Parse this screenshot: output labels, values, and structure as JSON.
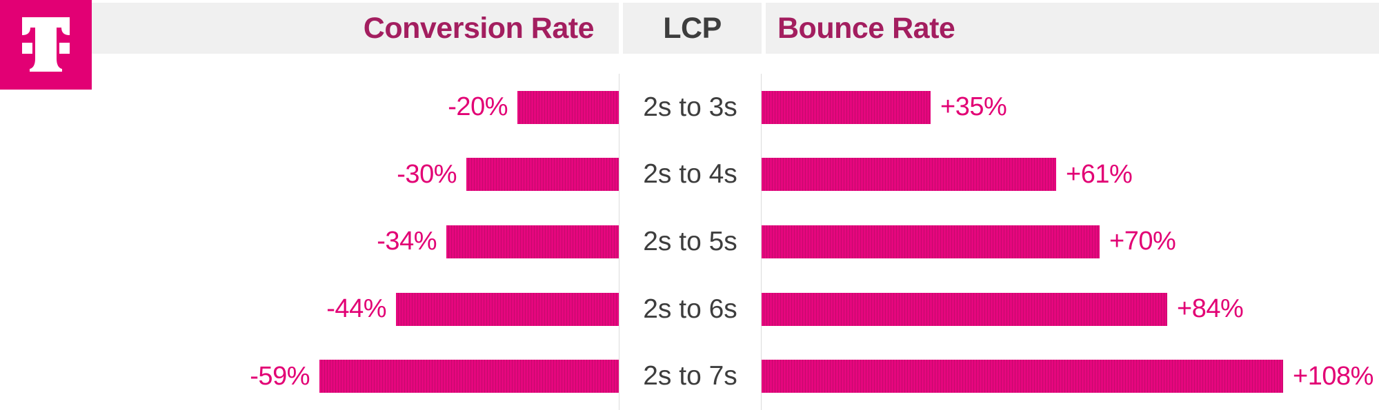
{
  "brand": {
    "logo": "t-mobile-telekom-logo"
  },
  "header": {
    "conversion_label": "Conversion Rate",
    "lcp_label": "LCP",
    "bounce_label": "Bounce Rate"
  },
  "colors": {
    "magenta": "#e20074",
    "bar_stripe_light": "#e6067e",
    "bar_stripe_dark": "#c40a6c",
    "header_text": "#a31e5f",
    "header_bg": "#f0f0f0",
    "dark_text": "#3d3d3d",
    "column_border": "#dcdcdc"
  },
  "chart_data": {
    "type": "bar",
    "orientation": "horizontal-diverging",
    "title": "",
    "center_axis_label": "LCP",
    "categories": [
      "2s to 3s",
      "2s to 4s",
      "2s to 5s",
      "2s to 6s",
      "2s to 7s"
    ],
    "series": [
      {
        "name": "Conversion Rate",
        "direction": "left",
        "values": [
          -20,
          -30,
          -34,
          -44,
          -59
        ],
        "labels": [
          "-20%",
          "-30%",
          "-34%",
          "-44%",
          "-59%"
        ]
      },
      {
        "name": "Bounce Rate",
        "direction": "right",
        "values": [
          35,
          61,
          70,
          84,
          108
        ],
        "labels": [
          "+35%",
          "+61%",
          "+70%",
          "+84%",
          "+108%"
        ]
      }
    ],
    "grid": false,
    "legend": "none",
    "value_unit": "%"
  }
}
